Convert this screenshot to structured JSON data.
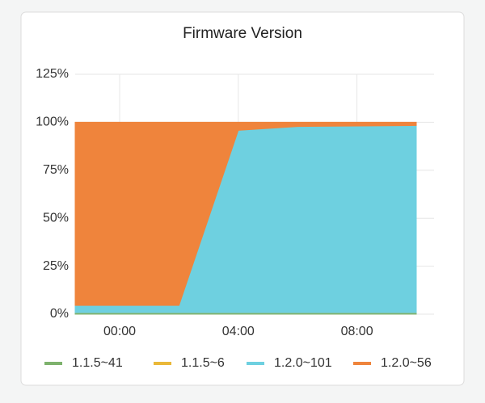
{
  "chart_data": {
    "type": "stacked-area",
    "title": "Firmware Version",
    "x": [
      -1.5,
      2,
      4,
      6,
      10
    ],
    "xlim": [
      -1.5,
      10.6
    ],
    "xticks": [
      {
        "value": 0,
        "label": "00:00"
      },
      {
        "value": 4,
        "label": "04:00"
      },
      {
        "value": 8,
        "label": "08:00"
      }
    ],
    "ylim": [
      0,
      125
    ],
    "yticks": [
      {
        "value": 0,
        "label": "0%"
      },
      {
        "value": 25,
        "label": "25%"
      },
      {
        "value": 50,
        "label": "50%"
      },
      {
        "value": 75,
        "label": "75%"
      },
      {
        "value": 100,
        "label": "100%"
      },
      {
        "value": 125,
        "label": "125%"
      }
    ],
    "grid": true,
    "legend": "bottom",
    "series": [
      {
        "name": "1.1.5~41",
        "color": "#7eb26d",
        "values": [
          0.8,
          0.8,
          0.8,
          0.8,
          0.8
        ]
      },
      {
        "name": "1.1.5~6",
        "color": "#eab839",
        "values": [
          0,
          0,
          0,
          0,
          0
        ]
      },
      {
        "name": "1.2.0~101",
        "color": "#6ed0e0",
        "values": [
          3.8,
          3.8,
          95,
          97,
          97.5
        ]
      },
      {
        "name": "1.2.0~56",
        "color": "#ef843c",
        "values": [
          95.4,
          95.4,
          4.2,
          2.2,
          1.7
        ]
      }
    ]
  }
}
